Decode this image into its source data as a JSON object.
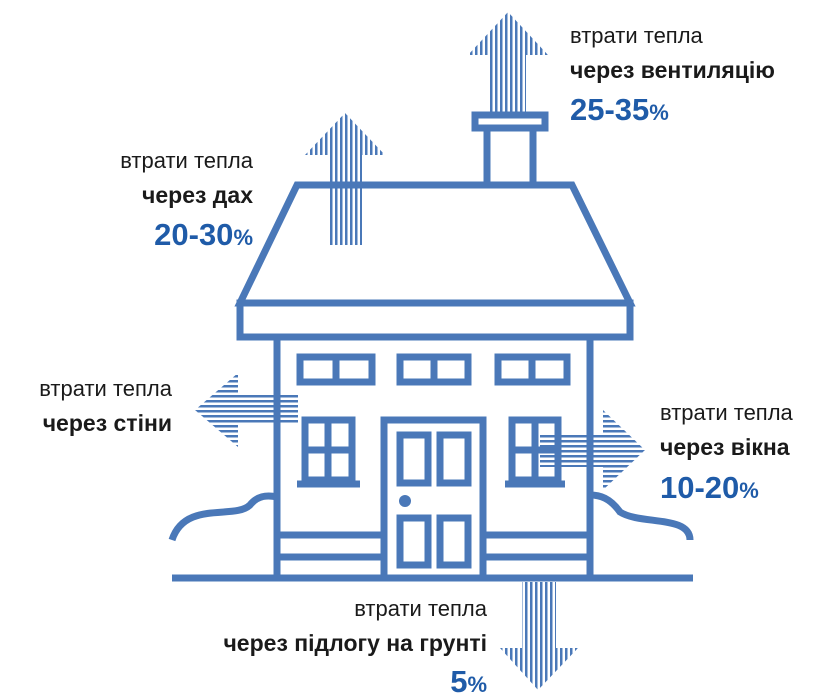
{
  "labels": [
    {
      "line1": "втрати тепла",
      "line2": "через вентиляцію",
      "value": "25-35",
      "unit": "%"
    },
    {
      "line1": "втрати тепла",
      "line2": "через дах",
      "value": "20-30",
      "unit": "%"
    },
    {
      "line1": "втрати тепла",
      "line2": "через стіни"
    },
    {
      "line1": "втрати тепла",
      "line2": "через вікна",
      "value": "10-20",
      "unit": "%"
    },
    {
      "line1": "втрати тепла",
      "line2": "через підлогу на грунті",
      "value": "5",
      "unit": "%"
    }
  ]
}
